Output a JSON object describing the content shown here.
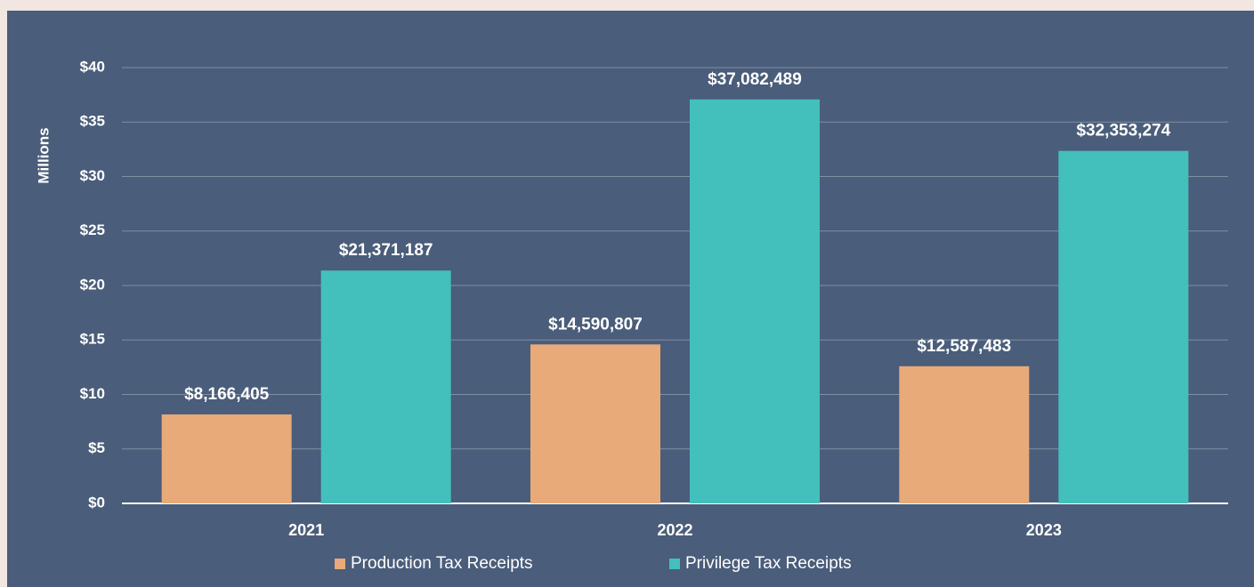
{
  "chart_data": {
    "type": "bar",
    "y_axis_label": "Millions",
    "categories": [
      "2021",
      "2022",
      "2023"
    ],
    "series": [
      {
        "name": "Production Tax Receipts",
        "color": "#e8aa78",
        "values": [
          8.166405,
          14.590807,
          12.587483
        ],
        "value_labels": [
          "$8,166,405",
          "$14,590,807",
          "$12,587,483"
        ]
      },
      {
        "name": "Privilege Tax Receipts",
        "color": "#43c0bc",
        "values": [
          21.371187,
          37.082489,
          32.353274
        ],
        "value_labels": [
          "$21,371,187",
          "$37,082,489",
          "$32,353,274"
        ]
      }
    ],
    "ylim": [
      0,
      40
    ],
    "yticks": [
      {
        "value": 0,
        "label": "$0"
      },
      {
        "value": 5,
        "label": "$5"
      },
      {
        "value": 10,
        "label": "$10"
      },
      {
        "value": 15,
        "label": "$15"
      },
      {
        "value": 20,
        "label": "$20"
      },
      {
        "value": 25,
        "label": "$25"
      },
      {
        "value": 30,
        "label": "$30"
      },
      {
        "value": 35,
        "label": "$35"
      },
      {
        "value": 40,
        "label": "$40"
      }
    ],
    "grid": true,
    "legend": "bottom"
  }
}
